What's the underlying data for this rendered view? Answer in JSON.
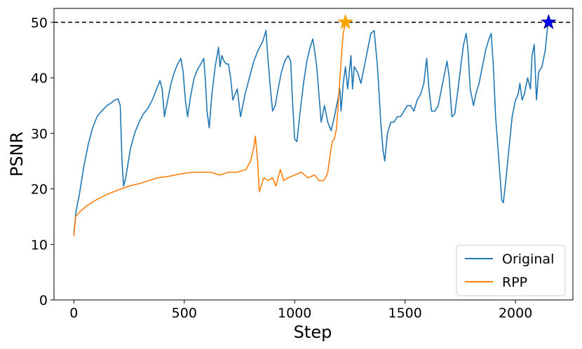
{
  "chart_data": {
    "type": "line",
    "title": "",
    "xlabel": "Step",
    "ylabel": "PSNR",
    "xlim": [
      -90,
      2260
    ],
    "ylim": [
      0,
      52.5
    ],
    "xticks": [
      0,
      500,
      1000,
      1500,
      2000
    ],
    "yticks": [
      0,
      10,
      20,
      30,
      40,
      50
    ],
    "grid": false,
    "legend_placement": "lower-right",
    "reference_line": {
      "y": 50,
      "style": "dashed",
      "color": "#000000"
    },
    "series": [
      {
        "name": "Original",
        "color": "#1f77b4",
        "points": [
          [
            0,
            12
          ],
          [
            10,
            16
          ],
          [
            25,
            19
          ],
          [
            45,
            24
          ],
          [
            65,
            28
          ],
          [
            85,
            31
          ],
          [
            105,
            33
          ],
          [
            125,
            34
          ],
          [
            150,
            35
          ],
          [
            170,
            35.5
          ],
          [
            185,
            36
          ],
          [
            200,
            36.2
          ],
          [
            210,
            35
          ],
          [
            218,
            25
          ],
          [
            225,
            20.5
          ],
          [
            235,
            22
          ],
          [
            255,
            27
          ],
          [
            275,
            30
          ],
          [
            295,
            32
          ],
          [
            315,
            33.5
          ],
          [
            335,
            34.5
          ],
          [
            355,
            36
          ],
          [
            375,
            38
          ],
          [
            390,
            39.5
          ],
          [
            400,
            38
          ],
          [
            410,
            33
          ],
          [
            425,
            36
          ],
          [
            440,
            39
          ],
          [
            455,
            41
          ],
          [
            470,
            42.5
          ],
          [
            485,
            43.5
          ],
          [
            495,
            41
          ],
          [
            505,
            36
          ],
          [
            515,
            33
          ],
          [
            530,
            37
          ],
          [
            545,
            40
          ],
          [
            560,
            41.5
          ],
          [
            575,
            42.5
          ],
          [
            588,
            43.5
          ],
          [
            595,
            40
          ],
          [
            603,
            34
          ],
          [
            613,
            31
          ],
          [
            625,
            37
          ],
          [
            640,
            42
          ],
          [
            655,
            45.5
          ],
          [
            662,
            42
          ],
          [
            670,
            44
          ],
          [
            680,
            43
          ],
          [
            690,
            42.5
          ],
          [
            700,
            42.5
          ],
          [
            710,
            40
          ],
          [
            720,
            36
          ],
          [
            740,
            38
          ],
          [
            755,
            33
          ],
          [
            775,
            37
          ],
          [
            795,
            40
          ],
          [
            815,
            43
          ],
          [
            835,
            45
          ],
          [
            855,
            46.5
          ],
          [
            870,
            48.5
          ],
          [
            878,
            44
          ],
          [
            888,
            39
          ],
          [
            900,
            34
          ],
          [
            912,
            35
          ],
          [
            925,
            38
          ],
          [
            940,
            41
          ],
          [
            955,
            43
          ],
          [
            970,
            44
          ],
          [
            982,
            43
          ],
          [
            990,
            36
          ],
          [
            1000,
            29
          ],
          [
            1010,
            28.5
          ],
          [
            1025,
            34
          ],
          [
            1040,
            39
          ],
          [
            1055,
            43
          ],
          [
            1070,
            45.5
          ],
          [
            1082,
            47
          ],
          [
            1090,
            45
          ],
          [
            1100,
            42
          ],
          [
            1112,
            36
          ],
          [
            1120,
            32
          ],
          [
            1135,
            35
          ],
          [
            1150,
            32
          ],
          [
            1165,
            30.5
          ],
          [
            1180,
            33
          ],
          [
            1195,
            36
          ],
          [
            1205,
            38
          ],
          [
            1210,
            34
          ],
          [
            1220,
            39
          ],
          [
            1230,
            42
          ],
          [
            1240,
            38
          ],
          [
            1255,
            44
          ],
          [
            1262,
            38
          ],
          [
            1270,
            42
          ],
          [
            1285,
            41
          ],
          [
            1300,
            39
          ],
          [
            1315,
            42
          ],
          [
            1330,
            45
          ],
          [
            1345,
            48
          ],
          [
            1360,
            48.5
          ],
          [
            1375,
            42
          ],
          [
            1390,
            32
          ],
          [
            1400,
            27
          ],
          [
            1408,
            25
          ],
          [
            1420,
            30
          ],
          [
            1435,
            32
          ],
          [
            1450,
            32
          ],
          [
            1465,
            33
          ],
          [
            1480,
            33
          ],
          [
            1495,
            34
          ],
          [
            1510,
            35
          ],
          [
            1525,
            35
          ],
          [
            1540,
            34
          ],
          [
            1555,
            36
          ],
          [
            1570,
            37
          ],
          [
            1585,
            39
          ],
          [
            1598,
            43.5
          ],
          [
            1608,
            38
          ],
          [
            1620,
            34
          ],
          [
            1635,
            34
          ],
          [
            1650,
            35
          ],
          [
            1665,
            38
          ],
          [
            1680,
            41
          ],
          [
            1690,
            43
          ],
          [
            1700,
            40
          ],
          [
            1712,
            33
          ],
          [
            1725,
            33.5
          ],
          [
            1740,
            38
          ],
          [
            1755,
            43
          ],
          [
            1765,
            46
          ],
          [
            1777,
            48
          ],
          [
            1785,
            45
          ],
          [
            1795,
            38
          ],
          [
            1810,
            35
          ],
          [
            1820,
            37
          ],
          [
            1835,
            39
          ],
          [
            1850,
            42
          ],
          [
            1865,
            45
          ],
          [
            1880,
            47
          ],
          [
            1890,
            48
          ],
          [
            1900,
            42
          ],
          [
            1910,
            33
          ],
          [
            1925,
            25
          ],
          [
            1938,
            18
          ],
          [
            1945,
            17.5
          ],
          [
            1955,
            21
          ],
          [
            1970,
            27
          ],
          [
            1985,
            33
          ],
          [
            2000,
            36
          ],
          [
            2012,
            37
          ],
          [
            2020,
            39
          ],
          [
            2030,
            36
          ],
          [
            2040,
            37
          ],
          [
            2055,
            40
          ],
          [
            2068,
            38
          ],
          [
            2075,
            44
          ],
          [
            2085,
            46
          ],
          [
            2095,
            36
          ],
          [
            2105,
            41
          ],
          [
            2120,
            42
          ],
          [
            2135,
            45
          ],
          [
            2145,
            49
          ],
          [
            2150,
            50
          ]
        ]
      },
      {
        "name": "RPP",
        "color": "#ff7f0e",
        "points": [
          [
            0,
            11.5
          ],
          [
            8,
            15
          ],
          [
            30,
            16
          ],
          [
            60,
            17
          ],
          [
            100,
            18
          ],
          [
            150,
            19
          ],
          [
            200,
            19.8
          ],
          [
            250,
            20.5
          ],
          [
            300,
            21
          ],
          [
            340,
            21.5
          ],
          [
            380,
            22
          ],
          [
            420,
            22.2
          ],
          [
            460,
            22.5
          ],
          [
            500,
            22.8
          ],
          [
            540,
            23
          ],
          [
            580,
            23
          ],
          [
            620,
            23
          ],
          [
            660,
            22.5
          ],
          [
            700,
            23
          ],
          [
            740,
            23
          ],
          [
            780,
            23.5
          ],
          [
            800,
            25
          ],
          [
            815,
            27.5
          ],
          [
            822,
            29.5
          ],
          [
            832,
            25
          ],
          [
            840,
            19.5
          ],
          [
            860,
            22
          ],
          [
            880,
            21.5
          ],
          [
            900,
            22
          ],
          [
            915,
            20.5
          ],
          [
            935,
            23.5
          ],
          [
            950,
            21.5
          ],
          [
            970,
            22
          ],
          [
            1000,
            22.5
          ],
          [
            1030,
            23
          ],
          [
            1060,
            22
          ],
          [
            1090,
            22.5
          ],
          [
            1110,
            21.5
          ],
          [
            1130,
            21.5
          ],
          [
            1140,
            22
          ],
          [
            1150,
            23
          ],
          [
            1160,
            26
          ],
          [
            1170,
            28.5
          ],
          [
            1180,
            29
          ],
          [
            1190,
            31
          ],
          [
            1200,
            37
          ],
          [
            1210,
            43
          ],
          [
            1220,
            48
          ],
          [
            1230,
            50
          ]
        ]
      }
    ],
    "markers": [
      {
        "x": 1230,
        "y": 50,
        "shape": "star",
        "color": "#ffa500",
        "edge": "#f5a300"
      },
      {
        "x": 2150,
        "y": 50,
        "shape": "star",
        "color": "#0000ff",
        "edge": "#00008b"
      }
    ]
  }
}
